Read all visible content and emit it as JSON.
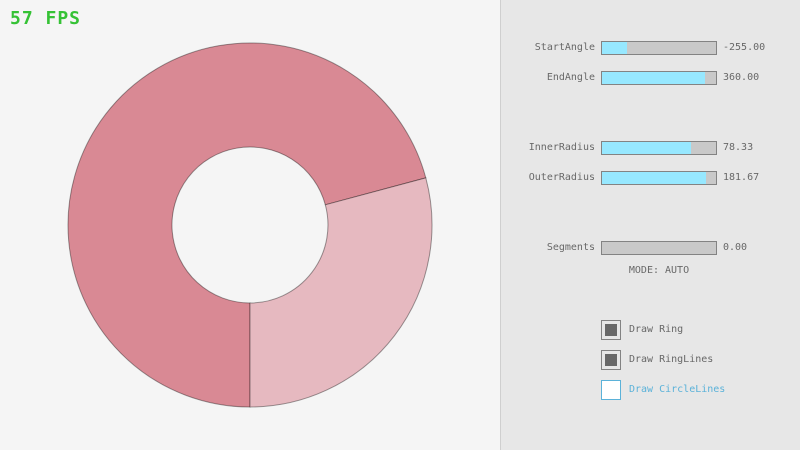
{
  "app": {
    "fps_label": "57 FPS"
  },
  "colors": {
    "background_left": "#f5f5f5",
    "background_panel": "#e7e7e7",
    "divider": "#cfcfcf",
    "fps_green": "#35c235",
    "ring_dark": "#d98994",
    "ring_light": "#e6b9c0",
    "ring_line": "rgba(0,0,0,0.38)",
    "slider_fill": "#97e8ff",
    "slider_track": "#c9c9c9",
    "control_border": "#838383",
    "text_gray": "#686868",
    "focused_blue": "#5bb2d9"
  },
  "ring": {
    "start_angle": -255.0,
    "end_angle": 360.0,
    "inner_radius": 78.33,
    "outer_radius": 181.67,
    "segments": 0.0,
    "mode": "AUTO"
  },
  "sliders": [
    {
      "label": "StartAngle",
      "value": "-255.00",
      "fill_percent": 21.7
    },
    {
      "label": "EndAngle",
      "value": "360.00",
      "fill_percent": 90.0
    },
    {
      "label": "InnerRadius",
      "value": "78.33",
      "fill_percent": 78.3
    },
    {
      "label": "OuterRadius",
      "value": "181.67",
      "fill_percent": 90.8
    },
    {
      "label": "Segments",
      "value": "0.00",
      "fill_percent": 0.0
    }
  ],
  "mode_text": "MODE: AUTO",
  "checkboxes": [
    {
      "label": "Draw Ring",
      "checked": true,
      "focused": false
    },
    {
      "label": "Draw RingLines",
      "checked": true,
      "focused": false
    },
    {
      "label": "Draw CircleLines",
      "checked": false,
      "focused": true
    }
  ]
}
